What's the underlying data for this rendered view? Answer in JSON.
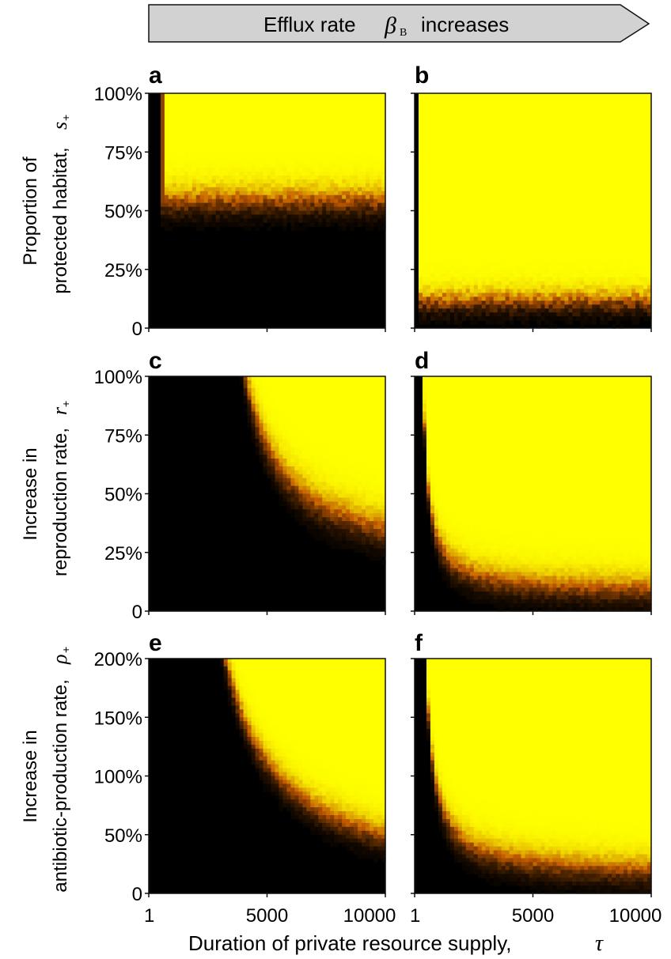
{
  "header": {
    "banner_text": "Efflux rate",
    "banner_symbol": "β",
    "banner_subscript": "B",
    "banner_suffix": "increases"
  },
  "x_axis": {
    "label": "Duration of private resource supply,",
    "symbol": "τ",
    "ticks": [
      "1",
      "5000",
      "10000"
    ],
    "tick_values": [
      1,
      5000,
      10000
    ],
    "range": [
      1,
      10000
    ]
  },
  "row_labels": [
    {
      "line1": "Proportion of",
      "line2": "protected habitat,",
      "symbol": "s",
      "sub": "+"
    },
    {
      "line1": "Increase in",
      "line2": "reproduction rate,",
      "symbol": "r",
      "sub": "+"
    },
    {
      "line1": "Increase in",
      "line2": "antibiotic-production rate,",
      "symbol": "ρ",
      "sub": "+"
    }
  ],
  "colors": {
    "low": "#000000",
    "mid": "#c25a00",
    "high": "#ffff00"
  },
  "chart_data": [
    {
      "type": "heatmap",
      "panel": "a",
      "ylabels": [
        "100%",
        "75%",
        "50%",
        "25%",
        "0"
      ],
      "yrange": [
        0,
        100
      ],
      "boundary": {
        "kind": "horizontal",
        "x_onset": 600,
        "level": 55,
        "steep": 30,
        "width": 5
      }
    },
    {
      "type": "heatmap",
      "panel": "b",
      "ylabels": [
        "",
        "",
        "",
        "",
        ""
      ],
      "yrange": [
        0,
        100
      ],
      "boundary": {
        "kind": "horizontal",
        "x_onset": 120,
        "level": 12,
        "steep": 8,
        "width": 4
      }
    },
    {
      "type": "heatmap",
      "panel": "c",
      "ylabels": [
        "100%",
        "75%",
        "50%",
        "25%",
        "0"
      ],
      "yrange": [
        0,
        100
      ],
      "boundary": {
        "kind": "hyperbola",
        "x0": 2500,
        "c": 132000,
        "offset": 18,
        "width": 6
      }
    },
    {
      "type": "heatmap",
      "panel": "d",
      "ylabels": [
        "",
        "",
        "",
        "",
        ""
      ],
      "yrange": [
        0,
        100
      ],
      "boundary": {
        "kind": "hyperbola",
        "x0": 150,
        "c": 19000,
        "offset": 8,
        "width": 5
      }
    },
    {
      "type": "heatmap",
      "panel": "e",
      "ylabels": [
        "200%",
        "150%",
        "100%",
        "50%",
        "0"
      ],
      "yrange": [
        0,
        200
      ],
      "boundary": {
        "kind": "hyperbola",
        "x0": 1000,
        "c": 450000,
        "offset": 0,
        "width": 10
      }
    },
    {
      "type": "heatmap",
      "panel": "f",
      "ylabels": [
        "",
        "",
        "",
        "",
        ""
      ],
      "yrange": [
        0,
        200
      ],
      "boundary": {
        "kind": "hyperbola",
        "x0": 150,
        "c": 60000,
        "offset": 15,
        "width": 10
      }
    }
  ]
}
